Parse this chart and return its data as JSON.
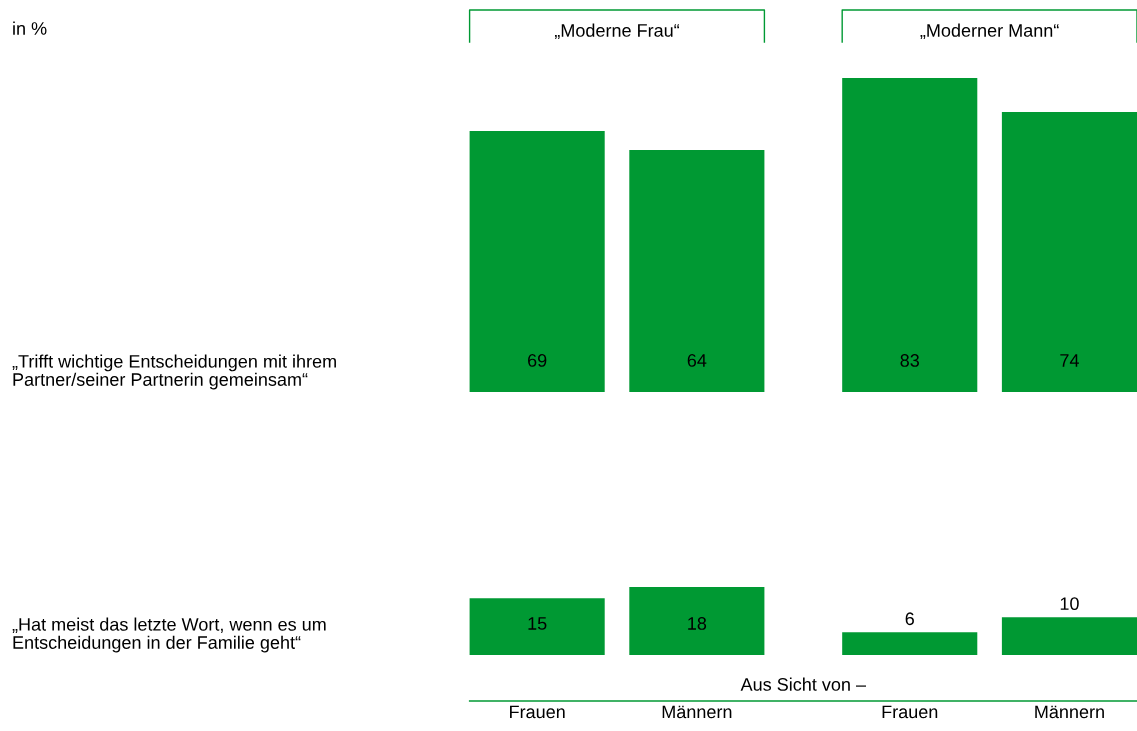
{
  "chart_data": [
    {
      "type": "bar",
      "ylabel": "„Trifft wichtige Entscheidungen mit ihrem\nPartner/seiner Partnerin gemeinsam“",
      "categories": [
        null,
        null,
        null,
        null
      ],
      "values": [
        69,
        64,
        83,
        74
      ],
      "color": "#009933",
      "data_labels": true,
      "tick_labels": false,
      "grid": false,
      "legend": false,
      "annotations": [
        "in %",
        "„Moderne Frau“",
        "„Moderner Mann“"
      ]
    },
    {
      "type": "bar",
      "ylabel": "„Hat meist das letzte Wort, wenn es um\nEntscheidungen in der Familie geht“",
      "categories": [
        "Frauen",
        "Männern",
        "Frauen",
        "Männern"
      ],
      "values": [
        15,
        18,
        6,
        10
      ],
      "color": "#009933",
      "data_labels": true,
      "tick_labels": "x",
      "grid": false,
      "legend": false,
      "annotations": [
        "Aus Sicht von –"
      ]
    }
  ]
}
